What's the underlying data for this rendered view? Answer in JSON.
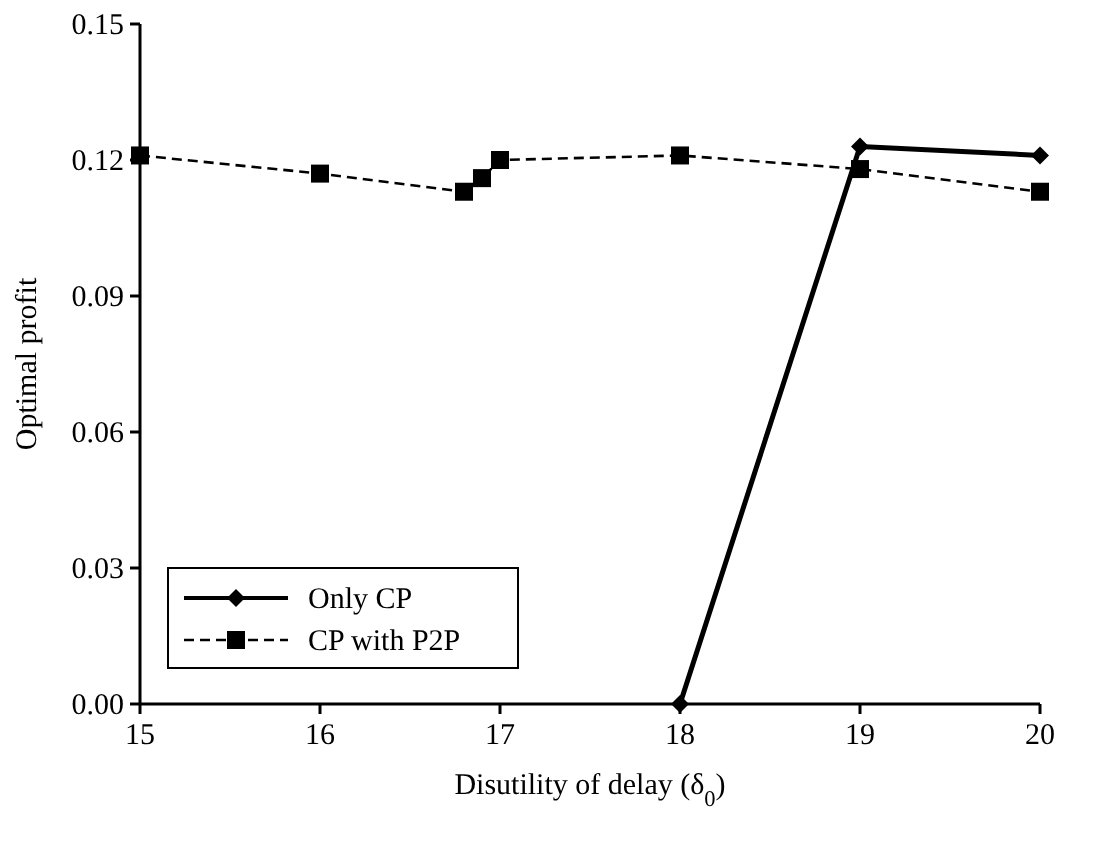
{
  "chart_data": {
    "type": "line",
    "xlabel": "Disutility of delay (δ$_{0}$)",
    "ylabel": "Optimal profit",
    "xlim": [
      15,
      20
    ],
    "xticks": [
      15,
      16,
      17,
      18,
      19,
      20
    ],
    "ylim": [
      0,
      0.15
    ],
    "yticks": [
      {
        "value": 0,
        "label": "0.00"
      },
      {
        "value": 0.03,
        "label": "0.03"
      },
      {
        "value": 0.06,
        "label": "0.06"
      },
      {
        "value": 0.09,
        "label": "0.09"
      },
      {
        "value": 0.12,
        "label": "0.12"
      },
      {
        "value": 0.15,
        "label": "0.15"
      }
    ],
    "grid": false,
    "legend": "bottom left",
    "series": [
      {
        "name": "Only CP",
        "color": "#000000",
        "marker": "diamond",
        "line_style": "solid",
        "x": [
          18,
          19,
          20
        ],
        "values": [
          0,
          0.123,
          0.121
        ]
      },
      {
        "name": "CP with P2P",
        "color": "#000000",
        "marker": "square",
        "line_style": "dashed",
        "x": [
          15,
          16,
          16.8,
          16.9,
          17,
          18,
          19,
          20
        ],
        "values": [
          0.121,
          0.117,
          0.113,
          0.116,
          0.12,
          0.121,
          0.118,
          0.113
        ]
      }
    ]
  }
}
